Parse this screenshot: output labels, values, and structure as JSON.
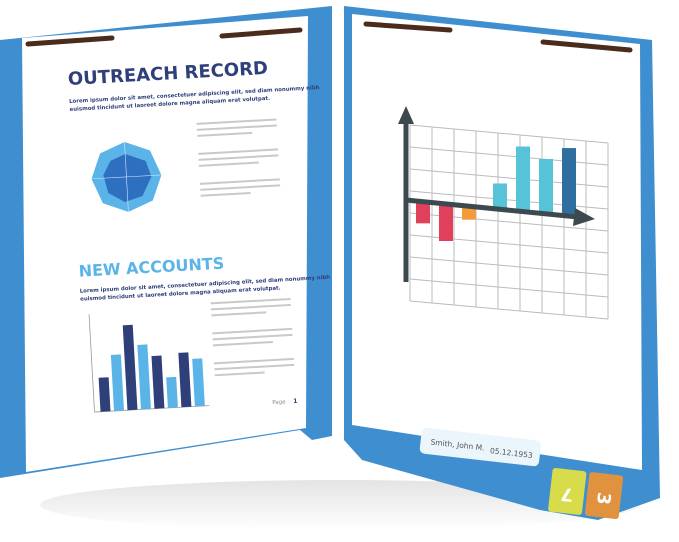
{
  "colors": {
    "folder": "#3f8fd0",
    "folder_dark": "#2f76b5",
    "navy": "#2f3f7a",
    "light_blue": "#5bb4e8",
    "red": "#e0405a",
    "orange": "#f59a3a",
    "teal": "#56c3d8",
    "tab_yellow": "#d9dc4a",
    "tab_orange": "#e0923e"
  },
  "left_page": {
    "title1": "OUTREACH RECORD",
    "body1_line1": "Lorem ipsum dolor sit amet, consectetuer adipiscing elit, sed diam nonummy nibh",
    "body1_line2": "euismod tincidunt ut laoreet dolore magna aliquam erat volutpat.",
    "title2": "NEW ACCOUNTS",
    "body2_line1": "Lorem ipsum dolor sit amet, consectetuer adipiscing elit, sed diam nonummy nibh",
    "body2_line2": "euismod tincidunt ut laoreet dolore magna aliquam erat volutpat.",
    "page_label": "Page",
    "page_number": "1",
    "bar_values": [
      20,
      33,
      50,
      38,
      31,
      18,
      32,
      28
    ]
  },
  "right_page": {
    "bar_values": [
      -8,
      -14,
      -5,
      10,
      25,
      21,
      26
    ]
  },
  "label": {
    "name": "Smith, John M.",
    "date": "05.12.1953"
  },
  "tabs": [
    {
      "text": "7"
    },
    {
      "text": "3"
    }
  ]
}
